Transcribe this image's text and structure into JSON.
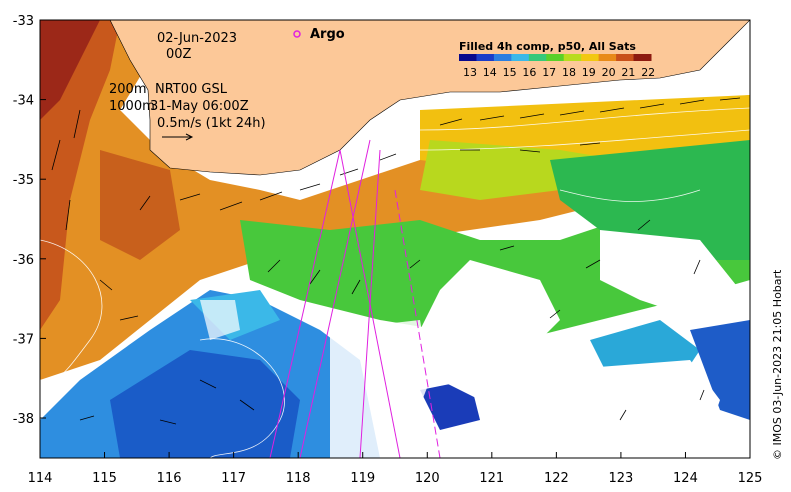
{
  "map": {
    "date": "02-Jun-2023",
    "time": "00Z",
    "depth_line1": "200m",
    "depth_line2": "1000m",
    "product": "NRT00 GSL",
    "altimetry_date": "31-May 06:00Z",
    "scale_label": "0.5m/s (1kt 24h)",
    "argo_label": "Argo",
    "credit": "© IMOS 03-Jun-2023 21:05 Hobart"
  },
  "colorbar": {
    "title": "Filled 4h comp, p50, All Sats",
    "ticks": [
      "13",
      "14",
      "15",
      "16",
      "17",
      "18",
      "19",
      "20",
      "21",
      "22"
    ],
    "colors": [
      "#08088c",
      "#1a3cc8",
      "#2b7ee0",
      "#3bb8e8",
      "#36c87a",
      "#5ad02a",
      "#b8dc1e",
      "#f2c810",
      "#e88a18",
      "#c8501a",
      "#8c1a10"
    ]
  },
  "axes": {
    "x_ticks": [
      "114",
      "115",
      "116",
      "117",
      "118",
      "119",
      "120",
      "121",
      "122",
      "123",
      "124",
      "125"
    ],
    "y_ticks": [
      "-33",
      "-34",
      "-35",
      "-36",
      "-37",
      "-38"
    ]
  },
  "colors": {
    "land": "#fcc898",
    "missing": "#ffffff",
    "argo_marker": "#e020e0"
  }
}
